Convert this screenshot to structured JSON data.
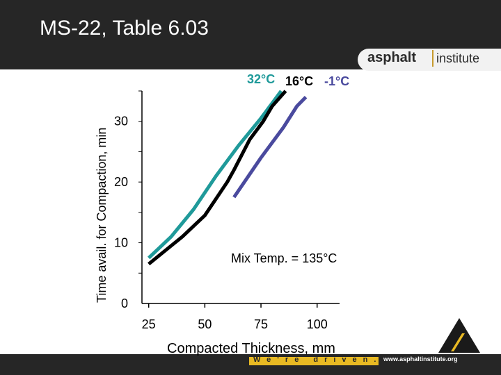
{
  "header": {
    "title": "MS-22, Table 6.03"
  },
  "branding": {
    "logo_word1": "asphalt",
    "logo_word2": "institute",
    "tagline": "We're driven.",
    "website": "www.asphaltinstitute.org"
  },
  "colors": {
    "bar": "#262626",
    "brand_yellow": "#e8b923",
    "series_32": "#1f9a9a",
    "series_16": "#000000",
    "series_m1": "#4a4a9e"
  },
  "chart_data": {
    "type": "line",
    "title": "",
    "xlabel": "Compacted Thickness, mm",
    "ylabel": "Time avail. for Compaction, min",
    "xlim": [
      22,
      110
    ],
    "ylim": [
      0,
      35
    ],
    "x_ticks": [
      25,
      50,
      75,
      100
    ],
    "y_ticks": [
      0,
      10,
      20,
      30
    ],
    "annotation": "Mix Temp. = 135°C",
    "series": [
      {
        "name": "32°C",
        "color": "#1f9a9a",
        "x": [
          25,
          35,
          45,
          55,
          65,
          75,
          80,
          84
        ],
        "y": [
          7.5,
          11,
          15.5,
          21,
          26,
          30.5,
          33,
          35
        ]
      },
      {
        "name": "16°C",
        "color": "#000000",
        "x": [
          25,
          40,
          50,
          60,
          63,
          70,
          76,
          80,
          86
        ],
        "y": [
          6.5,
          11,
          14.5,
          20,
          22,
          27,
          30,
          32.5,
          35
        ]
      },
      {
        "name": "-1°C",
        "color": "#4a4a9e",
        "x": [
          63,
          75,
          85,
          91,
          95
        ],
        "y": [
          17.5,
          24,
          29,
          32.5,
          34
        ]
      }
    ]
  }
}
